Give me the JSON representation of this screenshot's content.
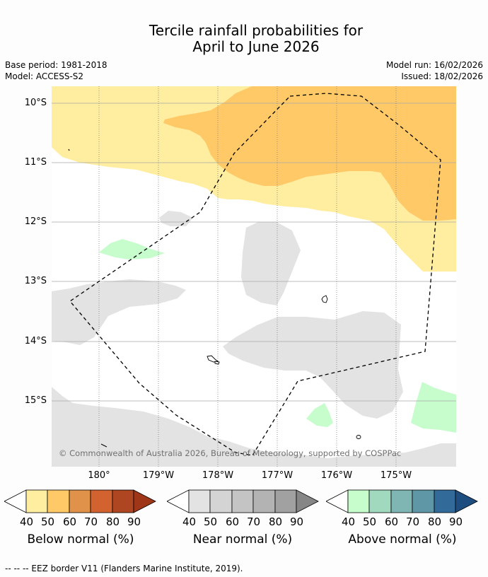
{
  "title": {
    "line1": "Tercile rainfall probabilities for",
    "line2": "April to June 2026"
  },
  "meta": {
    "base_period": "Base period: 1981-2018",
    "model": "Model: ACCESS-S2",
    "model_run": "Model run: 16/02/2026",
    "issued": "Issued: 18/02/2026"
  },
  "map": {
    "lat_labels": [
      "10°S",
      "11°S",
      "12°S",
      "13°S",
      "14°S",
      "15°S"
    ],
    "lon_labels": [
      "180°",
      "179°W",
      "178°W",
      "177°W",
      "176°W",
      "175°W"
    ],
    "copyright": "© Commonwealth of Australia 2026, Bureau of Meteorology, supported by COSPPac"
  },
  "legends": [
    {
      "caption": "Below normal (%)",
      "ticks": [
        "40",
        "50",
        "60",
        "70",
        "80",
        "90"
      ],
      "colors": [
        "#ffffff",
        "#ffeda0",
        "#fec966",
        "#e0924a",
        "#d2622f",
        "#ad4621",
        "#9e3617"
      ]
    },
    {
      "caption": "Near normal (%)",
      "ticks": [
        "40",
        "50",
        "60",
        "70",
        "80",
        "90"
      ],
      "colors": [
        "#ffffff",
        "#e3e3e3",
        "#d4d4d4",
        "#c4c4c4",
        "#b3b3b3",
        "#a1a1a1",
        "#868686"
      ]
    },
    {
      "caption": "Above normal (%)",
      "ticks": [
        "40",
        "50",
        "60",
        "70",
        "80",
        "90"
      ],
      "colors": [
        "#ffffff",
        "#c7fccc",
        "#a1d9bf",
        "#7fb5b2",
        "#5f97a6",
        "#326b9a",
        "#1e4d80"
      ]
    }
  ],
  "eez_note": "--  --  -- EEZ border V11 (Flanders Marine Institute, 2019)."
}
